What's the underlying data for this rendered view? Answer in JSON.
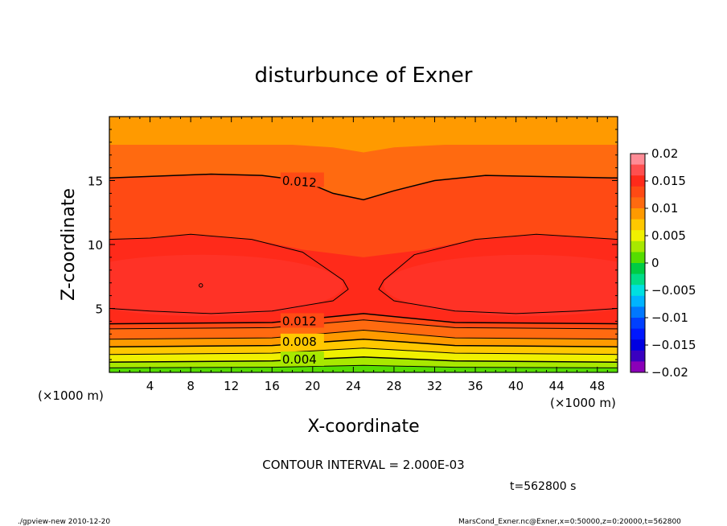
{
  "chart_data": {
    "type": "heatmap",
    "subtype": "filled-contour",
    "title": "disturbunce of Exner",
    "xlabel": "X-coordinate",
    "ylabel": "Z-coordinate",
    "x_unit_left": "(×1000 m)",
    "x_unit_right": "(×1000 m)",
    "xlim": [
      0,
      50
    ],
    "ylim": [
      0,
      20
    ],
    "x_ticks": [
      4,
      8,
      12,
      16,
      20,
      24,
      28,
      32,
      36,
      40,
      44,
      48
    ],
    "y_ticks": [
      5,
      10,
      15
    ],
    "contour_interval_text": "CONTOUR INTERVAL = 2.000E-03",
    "time_text": "t=562800 s",
    "contour_labels": [
      {
        "text": "0.012",
        "x": 17,
        "z": 15.0
      },
      {
        "text": "0.012",
        "x": 17,
        "z": 4.0
      },
      {
        "text": "0.008",
        "x": 17,
        "z": 2.4
      },
      {
        "text": "0.004",
        "x": 17,
        "z": 1.0
      }
    ],
    "colorbar": {
      "ticks": [
        "0.02",
        "0.015",
        "0.01",
        "0.005",
        "0",
        "−0.005",
        "−0.01",
        "−0.015",
        "−0.02"
      ],
      "levels": [
        {
          "min": 0.018,
          "max": 0.02,
          "color": "#ff8c96"
        },
        {
          "min": 0.016,
          "max": 0.018,
          "color": "#ff4f4f"
        },
        {
          "min": 0.014,
          "max": 0.016,
          "color": "#ff2a1a"
        },
        {
          "min": 0.012,
          "max": 0.014,
          "color": "#ff4a14"
        },
        {
          "min": 0.01,
          "max": 0.012,
          "color": "#ff6a10"
        },
        {
          "min": 0.008,
          "max": 0.01,
          "color": "#ff9a00"
        },
        {
          "min": 0.006,
          "max": 0.008,
          "color": "#ffc800"
        },
        {
          "min": 0.004,
          "max": 0.006,
          "color": "#f0f000"
        },
        {
          "min": 0.002,
          "max": 0.004,
          "color": "#a8e800"
        },
        {
          "min": 0.0,
          "max": 0.002,
          "color": "#55dd00"
        },
        {
          "min": -0.002,
          "max": 0.0,
          "color": "#00cc44"
        },
        {
          "min": -0.004,
          "max": -0.002,
          "color": "#00dd88"
        },
        {
          "min": -0.006,
          "max": -0.004,
          "color": "#00e0e0"
        },
        {
          "min": -0.008,
          "max": -0.006,
          "color": "#00b4ff"
        },
        {
          "min": -0.01,
          "max": -0.008,
          "color": "#0078ff"
        },
        {
          "min": -0.012,
          "max": -0.01,
          "color": "#0040ff"
        },
        {
          "min": -0.014,
          "max": -0.012,
          "color": "#0018ff"
        },
        {
          "min": -0.016,
          "max": -0.014,
          "color": "#0000e0"
        },
        {
          "min": -0.018,
          "max": -0.016,
          "color": "#3a00c0"
        },
        {
          "min": -0.02,
          "max": -0.018,
          "color": "#8a00b8"
        }
      ]
    },
    "field_description": {
      "bands": [
        {
          "value_range": [
            0.0,
            0.002
          ],
          "color": "#55dd00"
        },
        {
          "value_range": [
            0.002,
            0.004
          ],
          "color": "#a8e800"
        },
        {
          "value_range": [
            0.004,
            0.006
          ],
          "color": "#f0f000"
        },
        {
          "value_range": [
            0.006,
            0.008
          ],
          "color": "#ffc800"
        },
        {
          "value_range": [
            0.008,
            0.01
          ],
          "color": "#ff9a00"
        },
        {
          "value_range": [
            0.01,
            0.012
          ],
          "color": "#ff6a10"
        },
        {
          "value_range": [
            0.012,
            0.014
          ],
          "color": "#ff4a14"
        },
        {
          "value_range": [
            0.014,
            0.016
          ],
          "color": "#ff2a1a"
        }
      ],
      "maxima": [
        {
          "x": 9,
          "z": 6.8,
          "approx_value": 0.0155
        },
        {
          "x": 41,
          "z": 6.8,
          "approx_value": 0.0155
        }
      ],
      "minimum_upper_band": {
        "x": 25,
        "z": 13.5
      }
    }
  },
  "footer": {
    "left": "./gpview-new  2010-12-20",
    "right": "MarsCond_Exner.nc@Exner,x=0:50000,z=0:20000,t=562800"
  }
}
